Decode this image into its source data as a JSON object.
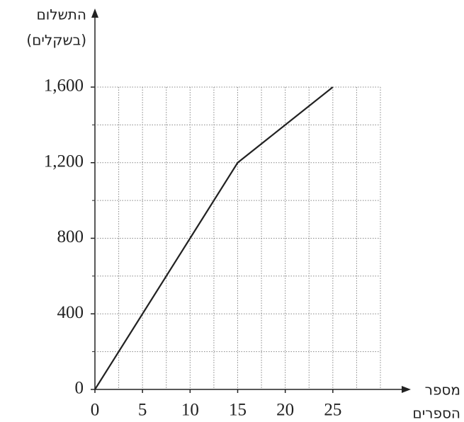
{
  "chart_data": {
    "type": "line",
    "ylabel": [
      "התשלום",
      "(בשקלים)"
    ],
    "xlabel": [
      "מספר",
      "הספרים"
    ],
    "x": [
      0,
      5,
      10,
      15,
      20,
      25
    ],
    "series": [
      {
        "color": "#222222",
        "values": [
          0,
          400,
          800,
          1200,
          1400,
          1600
        ]
      }
    ],
    "xlim": [
      0,
      30
    ],
    "ylim": [
      0,
      1600
    ],
    "xticks": [
      0,
      5,
      10,
      15,
      20,
      25
    ],
    "yticks": [
      0,
      {
        "value": 400,
        "label": "400"
      },
      {
        "value": 800,
        "label": "800"
      },
      {
        "value": 1200,
        "label": "1,200"
      },
      {
        "value": 1600,
        "label": "1,600"
      }
    ],
    "xminorticks": [
      2.5,
      7.5,
      12.5,
      17.5,
      22.5,
      27.5,
      30
    ],
    "yminorticks": [
      200,
      600,
      1000,
      1400
    ],
    "grid": true
  }
}
